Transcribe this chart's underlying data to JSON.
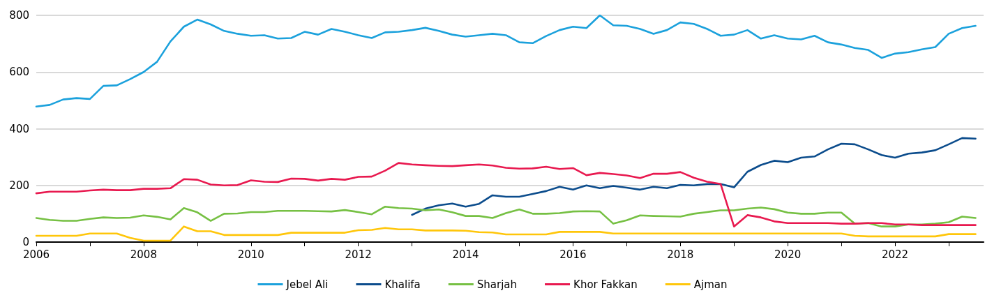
{
  "chart_data": {
    "type": "line",
    "marker": "none",
    "line_style": "solid",
    "grid": "y",
    "legend": "bottom",
    "xlim": [
      2006,
      2023.65
    ],
    "xticks": [
      2006,
      {
        "value": 2007,
        "label": null
      },
      2008,
      {
        "value": 2009,
        "label": null
      },
      2010,
      {
        "value": 2011,
        "label": null
      },
      2012,
      {
        "value": 2013,
        "label": null
      },
      2014,
      {
        "value": 2015,
        "label": null
      },
      2016,
      {
        "value": 2017,
        "label": null
      },
      2018,
      {
        "value": 2019,
        "label": null
      },
      2020,
      {
        "value": 2021,
        "label": null
      },
      2022,
      {
        "value": 2023,
        "label": null
      }
    ],
    "ylim": [
      0,
      800
    ],
    "yticks": [
      0,
      200,
      400,
      600,
      800
    ],
    "x": [
      2006,
      2006.25,
      2006.5,
      2006.75,
      2007,
      2007.25,
      2007.5,
      2007.75,
      2008,
      2008.25,
      2008.5,
      2008.75,
      2009,
      2009.25,
      2009.5,
      2009.75,
      2010,
      2010.25,
      2010.5,
      2010.75,
      2011,
      2011.25,
      2011.5,
      2011.75,
      2012,
      2012.25,
      2012.5,
      2012.75,
      2013,
      2013.25,
      2013.5,
      2013.75,
      2014,
      2014.25,
      2014.5,
      2014.75,
      2015,
      2015.25,
      2015.5,
      2015.75,
      2016,
      2016.25,
      2016.5,
      2016.75,
      2017,
      2017.25,
      2017.5,
      2017.75,
      2018,
      2018.25,
      2018.5,
      2018.75,
      2019,
      2019.25,
      2019.5,
      2019.75,
      2020,
      2020.25,
      2020.5,
      2020.75,
      2021,
      2021.25,
      2021.5,
      2021.75,
      2022,
      2022.25,
      2022.5,
      2022.75,
      2023,
      2023.25,
      2023.5
    ],
    "series": [
      {
        "name": "Jebel Ali",
        "color": "#1ba1dc",
        "values": [
          478,
          484,
          503,
          508,
          505,
          551,
          553,
          575,
          600,
          636,
          708,
          760,
          785,
          768,
          745,
          735,
          728,
          730,
          718,
          720,
          742,
          732,
          752,
          742,
          730,
          720,
          740,
          742,
          748,
          756,
          745,
          732,
          725,
          730,
          735,
          730,
          705,
          702,
          727,
          748,
          760,
          755,
          800,
          765,
          763,
          752,
          735,
          748,
          775,
          770,
          752,
          728,
          732,
          748,
          718,
          730,
          718,
          715,
          728,
          705,
          697,
          685,
          678,
          650,
          665,
          670,
          680,
          688,
          735,
          755,
          763
        ]
      },
      {
        "name": "Khalifa",
        "color": "#0b4c8c",
        "values": [
          null,
          null,
          null,
          null,
          null,
          null,
          null,
          null,
          null,
          null,
          null,
          null,
          null,
          null,
          null,
          null,
          null,
          null,
          null,
          null,
          null,
          null,
          null,
          null,
          null,
          null,
          null,
          null,
          96,
          118,
          130,
          136,
          125,
          135,
          165,
          160,
          160,
          170,
          180,
          195,
          185,
          200,
          190,
          198,
          192,
          185,
          195,
          190,
          202,
          200,
          205,
          205,
          193,
          248,
          272,
          287,
          282,
          298,
          302,
          327,
          347,
          345,
          327,
          307,
          298,
          312,
          316,
          324,
          345,
          367,
          365
        ]
      },
      {
        "name": "Sharjah",
        "color": "#76c043",
        "values": [
          85,
          78,
          75,
          75,
          82,
          87,
          85,
          86,
          94,
          89,
          80,
          120,
          105,
          75,
          100,
          101,
          106,
          106,
          110,
          110,
          110,
          109,
          108,
          113,
          106,
          98,
          125,
          120,
          118,
          112,
          115,
          105,
          92,
          92,
          85,
          102,
          115,
          100,
          100,
          102,
          108,
          109,
          108,
          65,
          77,
          94,
          92,
          91,
          90,
          100,
          106,
          112,
          112,
          118,
          122,
          116,
          104,
          100,
          100,
          104,
          104,
          65,
          67,
          55,
          55,
          62,
          62,
          65,
          70,
          90,
          85
        ]
      },
      {
        "name": "Khor Fakkan",
        "color": "#e8194f",
        "values": [
          172,
          178,
          178,
          178,
          182,
          185,
          183,
          183,
          188,
          188,
          190,
          222,
          220,
          203,
          200,
          201,
          218,
          213,
          212,
          224,
          223,
          217,
          223,
          220,
          230,
          231,
          252,
          279,
          274,
          271,
          269,
          268,
          271,
          274,
          270,
          262,
          259,
          260,
          266,
          258,
          261,
          236,
          244,
          240,
          235,
          226,
          241,
          241,
          247,
          227,
          213,
          205,
          55,
          95,
          87,
          73,
          67,
          67,
          67,
          67,
          65,
          65,
          67,
          67,
          62,
          62,
          60,
          60,
          60,
          60,
          60
        ]
      },
      {
        "name": "Ajman",
        "color": "#ffc60a",
        "values": [
          22,
          22,
          22,
          22,
          30,
          30,
          30,
          15,
          5,
          5,
          5,
          55,
          38,
          38,
          25,
          25,
          25,
          25,
          25,
          33,
          33,
          33,
          33,
          33,
          42,
          43,
          50,
          45,
          45,
          41,
          41,
          41,
          40,
          35,
          34,
          27,
          27,
          27,
          27,
          36,
          36,
          36,
          36,
          30,
          30,
          30,
          30,
          30,
          30,
          30,
          30,
          30,
          30,
          30,
          30,
          30,
          30,
          30,
          30,
          30,
          30,
          22,
          20,
          20,
          20,
          20,
          20,
          20,
          28,
          28,
          28
        ]
      }
    ]
  }
}
